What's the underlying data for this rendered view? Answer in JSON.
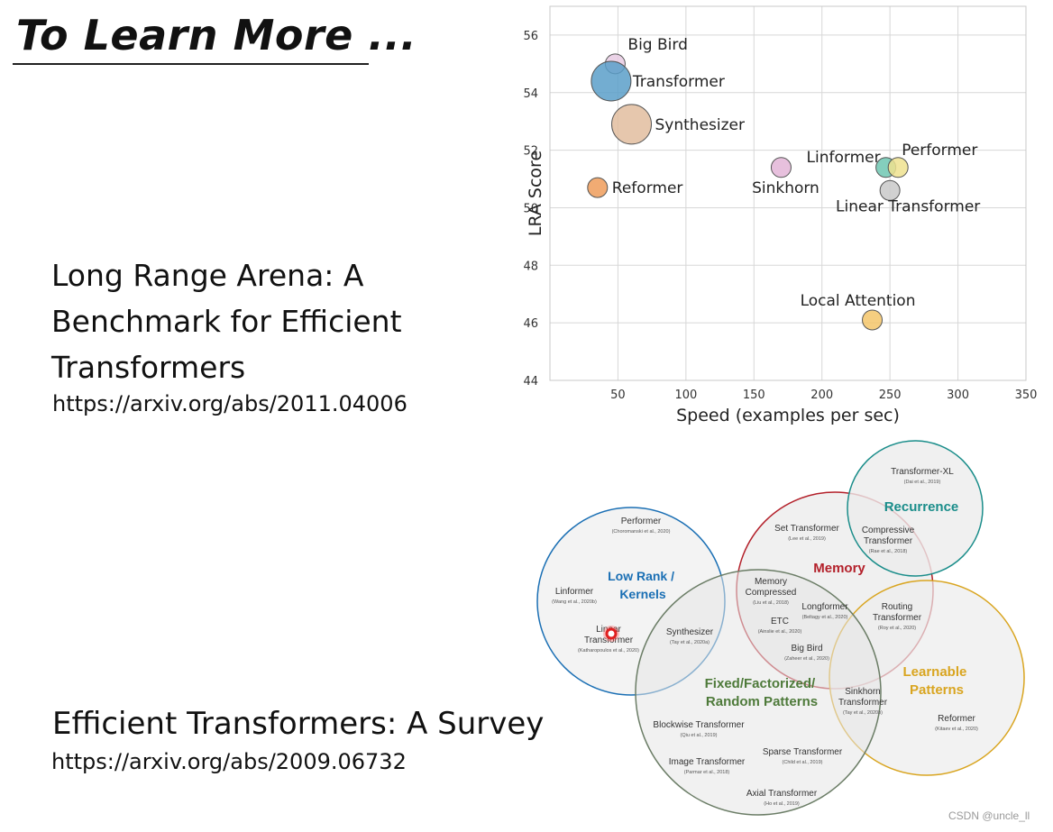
{
  "slide": {
    "title": "To Learn More ..."
  },
  "lra_paper": {
    "title_lines": [
      "Long Range Arena: A",
      "Benchmark for Efficient",
      "Transformers"
    ],
    "url": "https://arxiv.org/abs/2011.04006"
  },
  "survey_paper": {
    "title": "Efficient Transformers: A Survey",
    "url": "https://arxiv.org/abs/2009.06732"
  },
  "watermark": "CSDN @uncle_ll",
  "chart_data": {
    "type": "scatter",
    "xlabel": "Speed (examples per sec)",
    "ylabel": "LRA Score",
    "xlim": [
      0,
      350
    ],
    "ylim": [
      44,
      57
    ],
    "xticks": [
      50,
      100,
      150,
      200,
      250,
      300,
      350
    ],
    "yticks": [
      44,
      46,
      48,
      50,
      52,
      54,
      56
    ],
    "grid": true,
    "points": [
      {
        "label": "Big Bird",
        "x": 48,
        "y": 55.0,
        "size": "small",
        "color": "#e8cbe3"
      },
      {
        "label": "Transformer",
        "x": 45,
        "y": 54.4,
        "size": "large",
        "color": "#5a9fc9"
      },
      {
        "label": "Synthesizer",
        "x": 60,
        "y": 52.9,
        "size": "large",
        "color": "#e2bd9f"
      },
      {
        "label": "Reformer",
        "x": 35,
        "y": 50.7,
        "size": "small",
        "color": "#ef9c5a"
      },
      {
        "label": "Sinkhorn",
        "x": 170,
        "y": 51.4,
        "size": "small",
        "color": "#e3b5d7"
      },
      {
        "label": "Linformer",
        "x": 247,
        "y": 51.4,
        "size": "small",
        "color": "#6fc7b1"
      },
      {
        "label": "Performer",
        "x": 256,
        "y": 51.4,
        "size": "small",
        "color": "#efe28f"
      },
      {
        "label": "Linear Transformer",
        "x": 250,
        "y": 50.6,
        "size": "small",
        "color": "#c9c9c9"
      },
      {
        "label": "Local Attention",
        "x": 237,
        "y": 46.1,
        "size": "small",
        "color": "#f4c56a"
      }
    ]
  },
  "venn": {
    "colors": {
      "low_rank": "#1a6fb4",
      "memory": "#b3202a",
      "recurrence": "#1a8d8a",
      "learnable": "#d9a520",
      "fixed": "#4e7a3a"
    },
    "categories": {
      "low_rank": [
        "Low Rank /",
        "Kernels"
      ],
      "memory": "Memory",
      "recurrence": "Recurrence",
      "learnable": [
        "Learnable",
        "Patterns"
      ],
      "fixed": [
        "Fixed/Factorized/",
        "Random Patterns"
      ]
    },
    "models": [
      {
        "name": [
          "Performer"
        ],
        "cite": "(Choromanski et al., 2020)"
      },
      {
        "name": [
          "Linformer"
        ],
        "cite": "(Wang et al., 2020b)"
      },
      {
        "name": [
          "Linear",
          "Transformer"
        ],
        "cite": "(Katharopoulos et al., 2020)"
      },
      {
        "name": [
          "Synthesizer"
        ],
        "cite": "(Tay et al., 2020a)"
      },
      {
        "name": [
          "Set Transformer"
        ],
        "cite": "(Lee et al., 2019)"
      },
      {
        "name": [
          "Memory",
          "Compressed"
        ],
        "cite": "(Liu et al., 2018)"
      },
      {
        "name": [
          "ETC"
        ],
        "cite": "(Ainslie et al., 2020)"
      },
      {
        "name": [
          "Longformer"
        ],
        "cite": "(Beltagy et al., 2020)"
      },
      {
        "name": [
          "Big Bird"
        ],
        "cite": "(Zaheer et al., 2020)"
      },
      {
        "name": [
          "Transformer-XL"
        ],
        "cite": "(Dai et al., 2019)"
      },
      {
        "name": [
          "Compressive",
          "Transformer"
        ],
        "cite": "(Rae et al., 2018)"
      },
      {
        "name": [
          "Routing",
          "Transformer"
        ],
        "cite": "(Roy et al., 2020)"
      },
      {
        "name": [
          "Sinkhorn",
          "Transformer"
        ],
        "cite": "(Tay et al., 2020b)"
      },
      {
        "name": [
          "Reformer"
        ],
        "cite": "(Kitaev et al., 2020)"
      },
      {
        "name": [
          "Blockwise Transformer"
        ],
        "cite": "(Qiu et al., 2019)"
      },
      {
        "name": [
          "Sparse Transformer"
        ],
        "cite": "(Child et al., 2019)"
      },
      {
        "name": [
          "Image Transformer"
        ],
        "cite": "(Parmar et al., 2018)"
      },
      {
        "name": [
          "Axial Transformer"
        ],
        "cite": "(Ho et al., 2019)"
      }
    ]
  }
}
